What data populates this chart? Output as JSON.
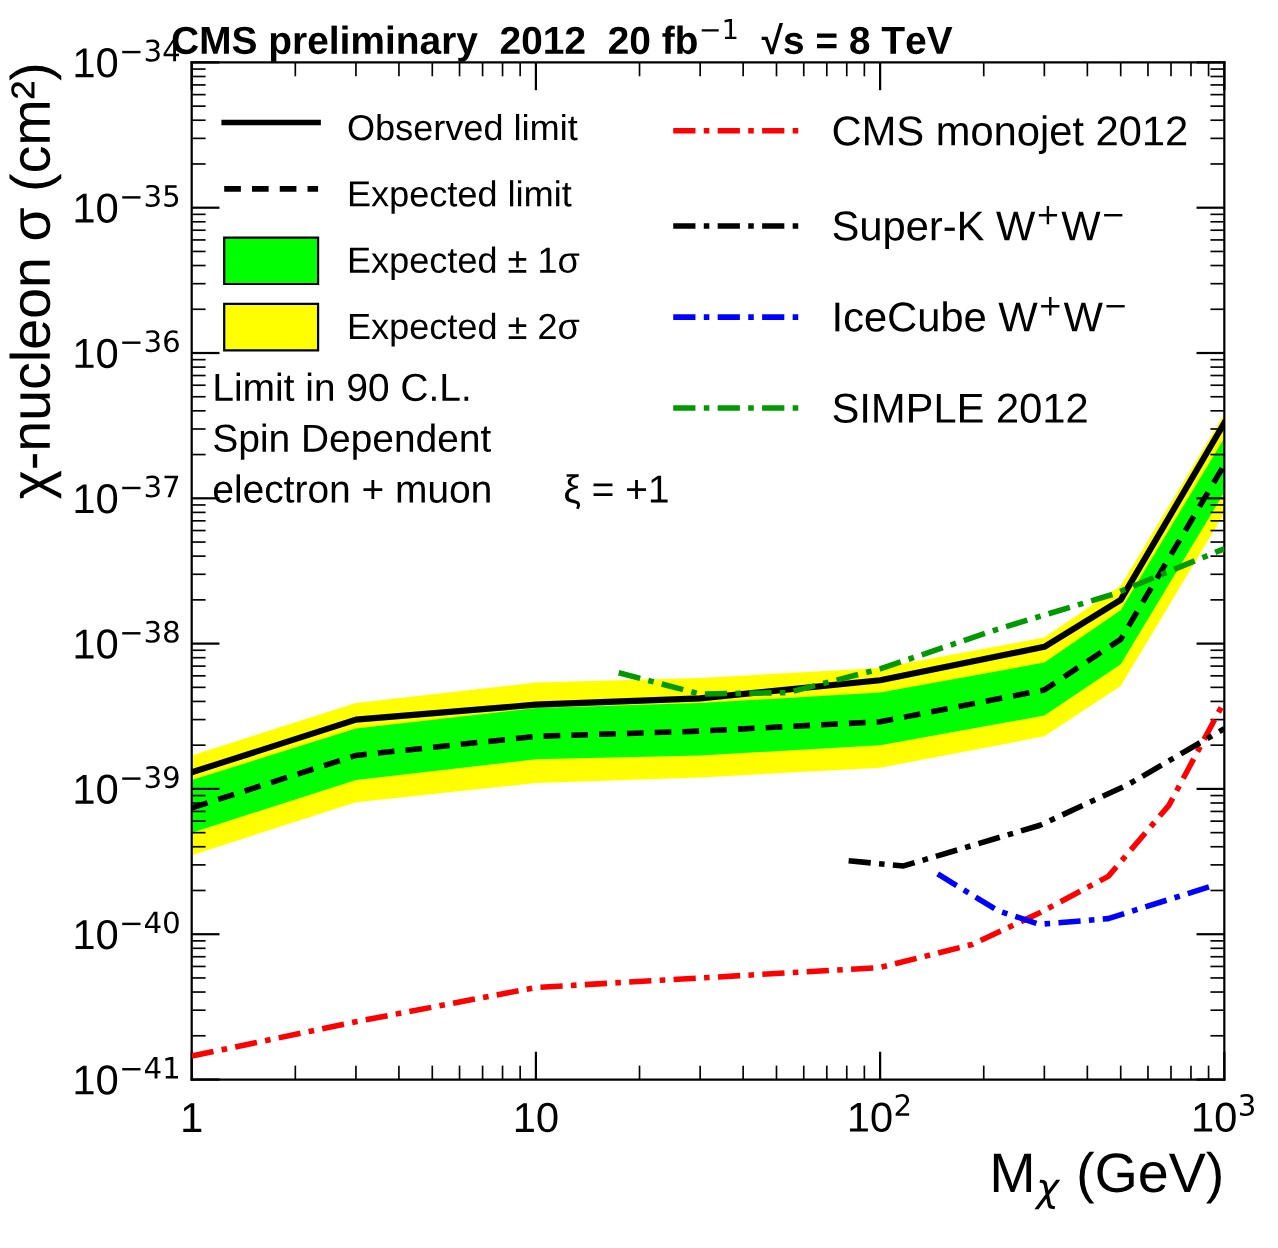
{
  "chart_data": {
    "type": "line",
    "title": "CMS preliminary  2012  20 fb$^{−1}$  √s = 8 TeV",
    "xlabel": "M$_{χ}$ (GeV)",
    "ylabel": "χ-nucleon σ (cm²)",
    "log": "xy",
    "xlim": [
      1,
      1000
    ],
    "ylim": [
      1e-41,
      1e-34
    ],
    "xticks": [
      1,
      10,
      {
        "value": 100,
        "label": "10$^{2}$"
      },
      {
        "value": 1000,
        "label": "10$^{3}$"
      }
    ],
    "yticks": [
      {
        "value": 1e-41,
        "label": "10$^{−41}$"
      },
      {
        "value": 1e-40,
        "label": "10$^{−40}$"
      },
      {
        "value": 1e-39,
        "label": "10$^{−39}$"
      },
      {
        "value": 1e-38,
        "label": "10$^{−38}$"
      },
      {
        "value": 1e-37,
        "label": "10$^{−37}$"
      },
      {
        "value": 1e-36,
        "label": "10$^{−36}$"
      },
      {
        "value": 1e-35,
        "label": "10$^{−35}$"
      },
      {
        "value": 1e-34,
        "label": "10$^{−34}$"
      }
    ],
    "grid": false,
    "legend": "top",
    "annotations": [
      "Limit in 90 C.L.",
      "Spin Dependent",
      "electron + muon",
      "ξ = +1"
    ],
    "series": [
      {
        "name": "Expected ± 2σ",
        "color": "#ffff00",
        "x": [
          1,
          3,
          10,
          30,
          100,
          300,
          500,
          1000
        ],
        "values": [
          null,
          null,
          null,
          null,
          null,
          null,
          null,
          null
        ],
        "lower": [
          3.5e-40,
          8.1e-40,
          1.1e-39,
          1.2e-39,
          1.4e-39,
          2.3e-39,
          5.1e-39,
          7.9e-38
        ],
        "upper": [
          1.7e-39,
          3.9e-39,
          5.4e-39,
          5.8e-39,
          6.8e-39,
          1.1e-38,
          2.5e-38,
          3.8e-37
        ]
      },
      {
        "name": "Expected ± 1σ",
        "color": "#00ff00",
        "x": [
          1,
          3,
          10,
          30,
          100,
          300,
          500,
          1000
        ],
        "values": [
          null,
          null,
          null,
          null,
          null,
          null,
          null,
          null
        ],
        "lower": [
          5e-40,
          1.15e-39,
          1.6e-39,
          1.7e-39,
          2e-39,
          3.2e-39,
          7.2e-39,
          1.1e-37
        ],
        "upper": [
          1.15e-39,
          2.6e-39,
          3.6e-39,
          3.9e-39,
          4.6e-39,
          7.4e-39,
          1.7e-38,
          2.6e-37
        ]
      },
      {
        "name": "Observed limit",
        "color": "#000000",
        "line_style": "solid",
        "x": [
          1,
          3,
          10,
          30,
          100,
          300,
          500,
          1000
        ],
        "values": [
          1.3e-39,
          3e-39,
          3.8e-39,
          4.2e-39,
          5.6e-39,
          9.5e-39,
          2e-38,
          3.3e-37
        ]
      },
      {
        "name": "Expected limit",
        "color": "#000000",
        "line_style": "dashed",
        "x": [
          1,
          3,
          10,
          30,
          100,
          300,
          500,
          1000
        ],
        "values": [
          7.4e-40,
          1.7e-39,
          2.3e-39,
          2.5e-39,
          2.9e-39,
          4.8e-39,
          1.07e-38,
          1.7e-37
        ]
      },
      {
        "name": "CMS monojet 2012",
        "color": "#ff0000",
        "line_style": "dotted",
        "x": [
          1,
          3,
          10,
          30,
          100,
          185,
          290,
          460,
          690,
          1000
        ],
        "values": [
          1.45e-41,
          2.5e-41,
          4.3e-41,
          5e-41,
          5.9e-41,
          8.5e-41,
          1.4e-40,
          2.5e-40,
          7.7e-40,
          4e-39
        ]
      },
      {
        "name": "Super-K W$^{+}$W$^{−}$",
        "color": "#000000",
        "line_style": "dotted",
        "x": [
          81,
          117,
          290,
          525,
          1000
        ],
        "values": [
          3.2e-40,
          2.95e-40,
          5.6e-40,
          1.07e-39,
          2.6e-39
        ]
      },
      {
        "name": "IceCube W$^{+}$W$^{−}$",
        "color": "#0000ff",
        "line_style": "dotted",
        "x": [
          147,
          220,
          290,
          460,
          950
        ],
        "values": [
          2.6e-40,
          1.45e-40,
          1.17e-40,
          1.28e-40,
          2.2e-40
        ]
      },
      {
        "name": "SIMPLE 2012",
        "color": "#009900",
        "line_style": "dotted",
        "x": [
          17.4,
          30,
          54,
          100,
          220,
          480,
          1000
        ],
        "values": [
          6.3e-39,
          4.5e-39,
          4.6e-39,
          6.7e-39,
          1.26e-38,
          2.2e-38,
          4.5e-38
        ]
      }
    ]
  }
}
